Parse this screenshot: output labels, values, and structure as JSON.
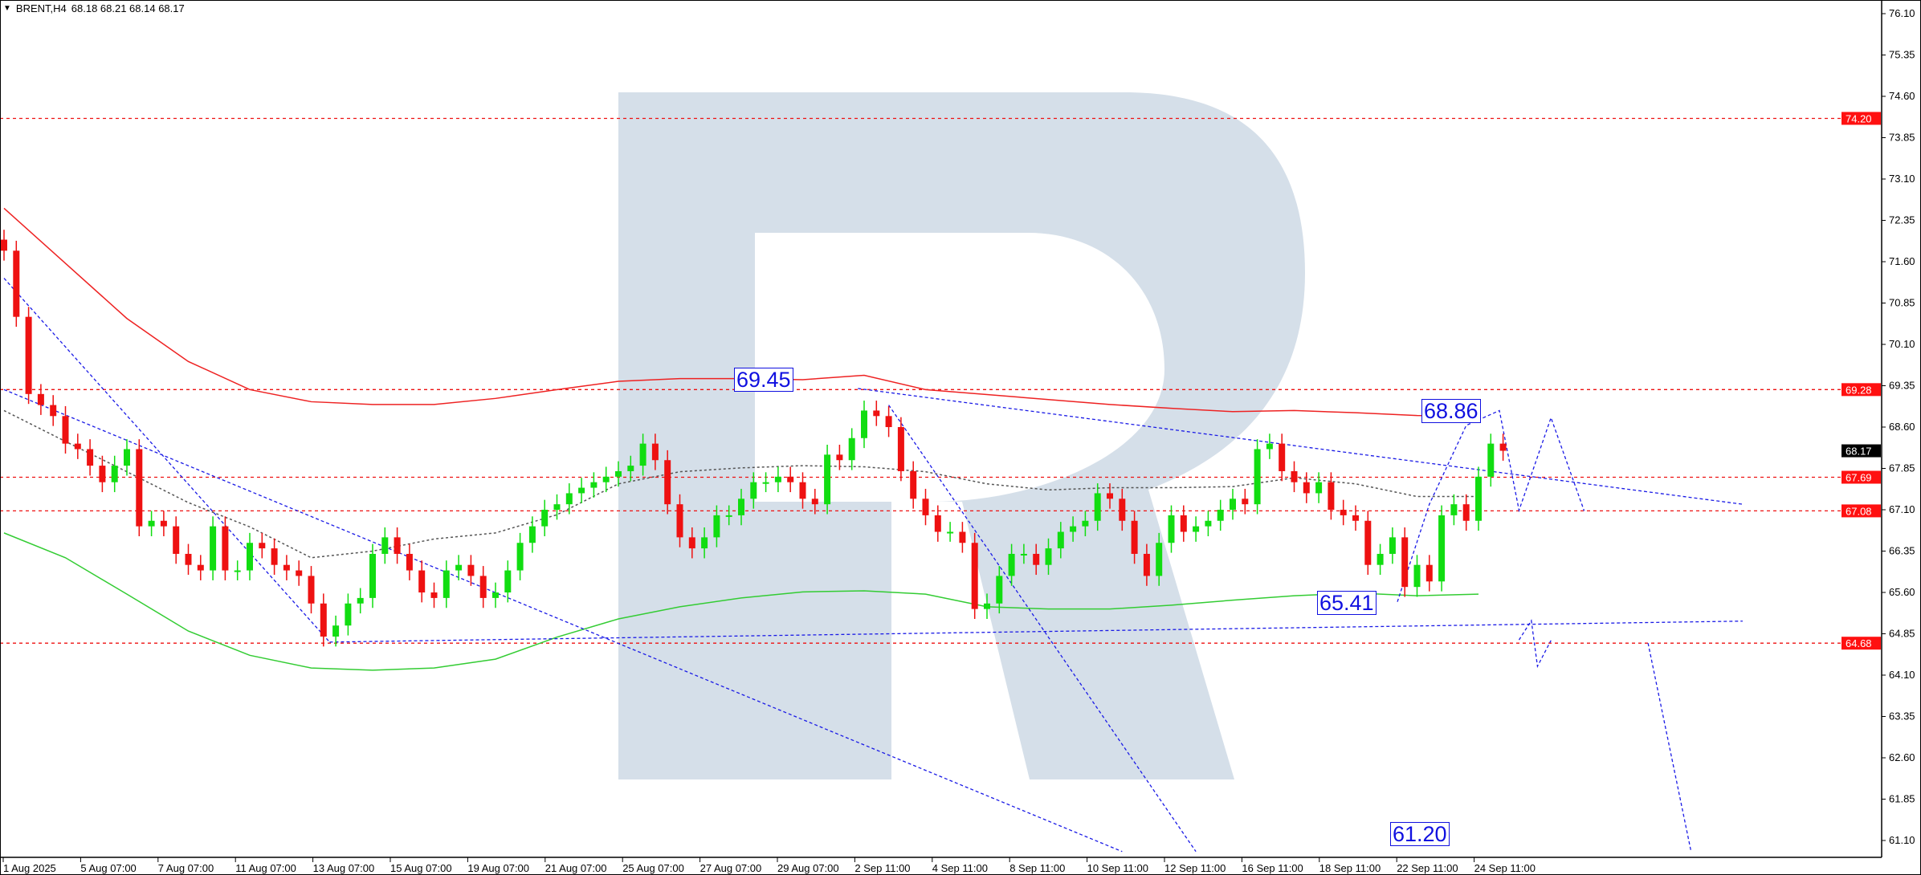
{
  "header": {
    "symbol": "BRENT,H4",
    "ohlc": "68.18 68.21 68.14 68.17"
  },
  "colors": {
    "bull": "#11dd11",
    "bear": "#ee1111",
    "ma_slow": "#ee2222",
    "ma_fast": "#33cc33",
    "ma_mid": "#555555",
    "trend": "#1a1ae6",
    "level": "#ee1111",
    "watermark": "#d5dfe9"
  },
  "chart_data": {
    "type": "candlestick",
    "title": "BRENT,H4",
    "closes": [
      71.8,
      70.6,
      69.2,
      69.0,
      68.8,
      68.3,
      68.2,
      67.9,
      67.6,
      67.9,
      68.2,
      66.8,
      66.9,
      66.8,
      66.3,
      66.1,
      66.0,
      66.8,
      66.0,
      66.0,
      66.5,
      66.4,
      66.1,
      66.0,
      65.9,
      65.4,
      64.8,
      65.0,
      65.4,
      65.5,
      66.3,
      66.6,
      66.3,
      66.0,
      65.6,
      65.5,
      66.0,
      66.1,
      65.9,
      65.5,
      65.6,
      66.0,
      66.5,
      66.8,
      67.1,
      67.2,
      67.4,
      67.5,
      67.6,
      67.7,
      67.8,
      67.9,
      68.3,
      68.0,
      67.2,
      66.6,
      66.4,
      66.6,
      67.0,
      67.0,
      67.3,
      67.6,
      67.6,
      67.7,
      67.6,
      67.3,
      67.2,
      68.1,
      68.0,
      68.4,
      68.9,
      68.8,
      68.6,
      67.8,
      67.3,
      67.0,
      66.7,
      66.7,
      66.5,
      65.3,
      65.4,
      65.9,
      66.3,
      66.3,
      66.1,
      66.4,
      66.7,
      66.8,
      66.9,
      67.4,
      67.3,
      66.9,
      66.3,
      65.9,
      66.5,
      67.0,
      66.7,
      66.8,
      66.9,
      67.1,
      67.3,
      67.2,
      68.2,
      68.3,
      67.8,
      67.6,
      67.4,
      67.6,
      67.1,
      67.0,
      66.9,
      66.1,
      66.3,
      66.6,
      65.7,
      66.1,
      65.8,
      67.0,
      67.2,
      66.9,
      67.7,
      68.3,
      68.17
    ],
    "ma_slow": [
      72.57,
      71.57,
      70.57,
      69.79,
      69.28,
      69.06,
      69.01,
      69.01,
      69.12,
      69.28,
      69.43,
      69.48,
      69.48,
      69.46,
      69.54,
      69.28,
      69.19,
      69.1,
      69.01,
      68.94,
      68.88,
      68.9,
      68.86,
      68.81,
      68.8
    ],
    "ma_fast": [
      66.68,
      66.23,
      65.57,
      64.9,
      64.46,
      64.23,
      64.19,
      64.23,
      64.39,
      64.79,
      65.12,
      65.34,
      65.5,
      65.61,
      65.63,
      65.57,
      65.34,
      65.3,
      65.3,
      65.37,
      65.46,
      65.54,
      65.59,
      65.54,
      65.57
    ],
    "ma_mid": [
      68.9,
      68.34,
      67.79,
      67.23,
      66.79,
      66.23,
      66.35,
      66.57,
      66.68,
      67.01,
      67.57,
      67.79,
      67.86,
      67.9,
      67.88,
      67.79,
      67.57,
      67.46,
      67.5,
      67.5,
      67.52,
      67.68,
      67.57,
      67.34,
      67.34
    ],
    "levels": [
      74.2,
      69.28,
      67.69,
      67.08,
      64.68
    ],
    "trendlines": [
      [
        [
          0,
          71.3
        ],
        [
          26.5,
          64.7
        ]
      ],
      [
        [
          0,
          69.28
        ],
        [
          91,
          60.9
        ]
      ],
      [
        [
          26.5,
          64.7
        ],
        [
          141.5,
          65.08
        ]
      ],
      [
        [
          69.5,
          69.3
        ],
        [
          141.5,
          67.2
        ]
      ],
      [
        [
          72,
          69.0
        ],
        [
          97,
          60.9
        ]
      ]
    ],
    "forecast": [
      [
        [
          113.4,
          65.43
        ],
        [
          116,
          67.2
        ],
        [
          119,
          68.63
        ],
        [
          121.7,
          68.9
        ],
        [
          123.3,
          67.09
        ],
        [
          125.9,
          68.77
        ],
        [
          128.6,
          67.08
        ]
      ],
      [
        [
          123.3,
          64.74
        ],
        [
          124.3,
          65.09
        ],
        [
          124.8,
          64.26
        ],
        [
          125.9,
          64.73
        ]
      ],
      [
        [
          133.8,
          64.68
        ],
        [
          137.3,
          60.9
        ]
      ]
    ],
    "annotations": [
      "69.45",
      "68.86",
      "65.41",
      "61.20"
    ],
    "y_ticks": [
      "76.10",
      "75.35",
      "74.60",
      "73.85",
      "73.10",
      "72.35",
      "71.60",
      "70.85",
      "70.10",
      "69.35",
      "68.60",
      "67.85",
      "67.10",
      "66.35",
      "65.60",
      "64.85",
      "64.10",
      "63.35",
      "62.60",
      "61.85",
      "61.10"
    ],
    "price_markers": [
      {
        "value": "74.20",
        "kind": "level"
      },
      {
        "value": "69.28",
        "kind": "level"
      },
      {
        "value": "68.17",
        "kind": "current"
      },
      {
        "value": "67.69",
        "kind": "level"
      },
      {
        "value": "67.08",
        "kind": "level"
      },
      {
        "value": "64.68",
        "kind": "level"
      }
    ],
    "x_ticks": [
      "1 Aug 2025",
      "5 Aug 07:00",
      "7 Aug 07:00",
      "11 Aug 07:00",
      "13 Aug 07:00",
      "15 Aug 07:00",
      "19 Aug 07:00",
      "21 Aug 07:00",
      "25 Aug 07:00",
      "27 Aug 07:00",
      "29 Aug 07:00",
      "2 Sep 11:00",
      "4 Sep 11:00",
      "8 Sep 11:00",
      "10 Sep 11:00",
      "12 Sep 11:00",
      "16 Sep 11:00",
      "18 Sep 11:00",
      "22 Sep 11:00",
      "24 Sep 11:00"
    ],
    "ylim": [
      61.1,
      76.1
    ],
    "grid": false
  }
}
